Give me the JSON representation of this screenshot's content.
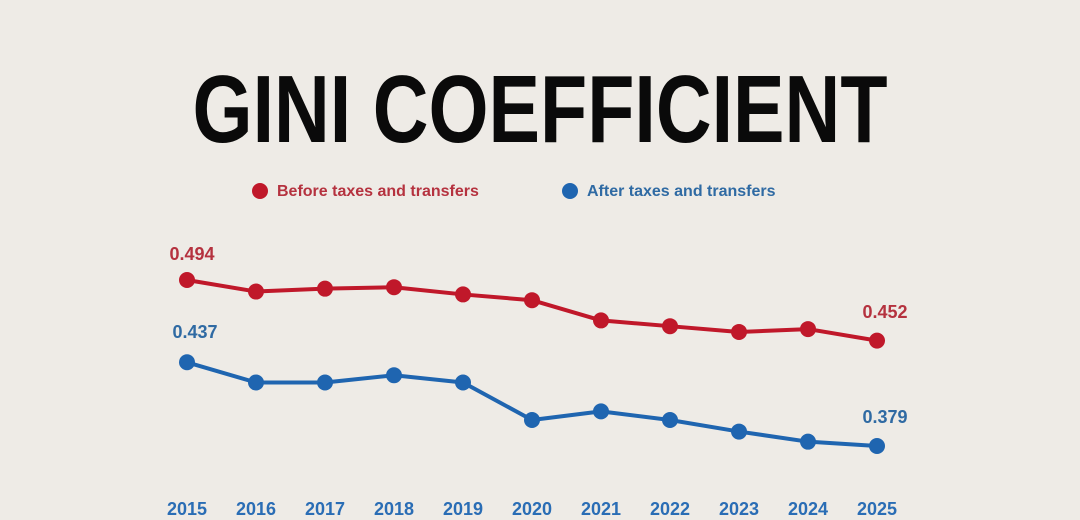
{
  "chart_data": {
    "type": "line",
    "title": "GINI COEFFICIENT",
    "categories": [
      "2015",
      "2016",
      "2017",
      "2018",
      "2019",
      "2020",
      "2021",
      "2022",
      "2023",
      "2024",
      "2025"
    ],
    "series": [
      {
        "name": "Before taxes and transfers",
        "color": "#c0182a",
        "values": [
          0.494,
          0.486,
          0.488,
          0.489,
          0.484,
          0.48,
          0.466,
          0.462,
          0.458,
          0.46,
          0.452
        ]
      },
      {
        "name": "After taxes and transfers",
        "color": "#1f65b0",
        "values": [
          0.437,
          0.423,
          0.423,
          0.428,
          0.423,
          0.397,
          0.403,
          0.397,
          0.389,
          0.382,
          0.379
        ]
      }
    ]
  }
}
